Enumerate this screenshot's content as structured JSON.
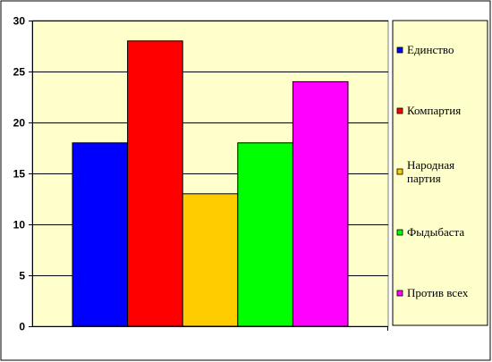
{
  "colors": {
    "plot_background": "#FFFFCC",
    "legend_background": "#FFFFCC",
    "gridline": "#000000"
  },
  "chart_data": {
    "type": "bar",
    "title": "",
    "xlabel": "",
    "ylabel": "",
    "ylim": [
      0,
      30
    ],
    "yticks": [
      0,
      5,
      10,
      15,
      20,
      25,
      30
    ],
    "grid": true,
    "legend_position": "right",
    "categories": [
      ""
    ],
    "series": [
      {
        "name": "Единство",
        "values": [
          18
        ],
        "color": "#0000FF"
      },
      {
        "name": "Компартия",
        "values": [
          28
        ],
        "color": "#FF0000"
      },
      {
        "name": "Народная партия",
        "values": [
          13
        ],
        "color": "#FFCC00"
      },
      {
        "name": "Фыдыбаста",
        "values": [
          18
        ],
        "color": "#00FF00"
      },
      {
        "name": "Против всех",
        "values": [
          24
        ],
        "color": "#FF00FF"
      }
    ]
  }
}
